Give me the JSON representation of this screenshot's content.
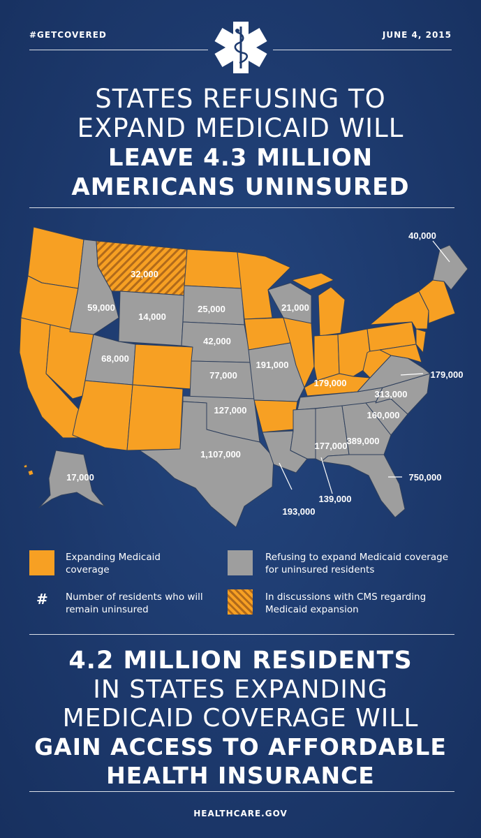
{
  "header": {
    "hashtag": "#GETCOVERED",
    "date": "JUNE 4, 2015",
    "logo_icon": "star-of-life-icon"
  },
  "headline": {
    "line1": "STATES REFUSING TO",
    "line2": "EXPAND MEDICAID WILL",
    "line3": "LEAVE 4.3 MILLION",
    "line4": "AMERICANS UNINSURED"
  },
  "colors": {
    "expanding": "#f7a023",
    "refusing": "#9e9e9e",
    "background": "#1d3a6e",
    "text": "#ffffff"
  },
  "map": {
    "labels": {
      "maine": "40,000",
      "montana": "32,000",
      "idaho": "59,000",
      "wyoming": "14,000",
      "south_dakota": "25,000",
      "wisconsin": "21,000",
      "nebraska": "42,000",
      "utah": "68,000",
      "kansas": "77,000",
      "missouri": "191,000",
      "virginia": "179,000",
      "tennessee": "179,000",
      "north_carolina": "313,000",
      "oklahoma": "127,000",
      "south_carolina": "160,000",
      "georgia": "389,000",
      "alabama": "177,000",
      "texas": "1,107,000",
      "florida": "750,000",
      "alaska": "17,000",
      "mississippi": "139,000",
      "louisiana": "193,000"
    }
  },
  "legend": {
    "expanding": "Expanding Medicaid coverage",
    "refusing": "Refusing to expand Medicaid coverage for uninsured residents",
    "number_symbol": "#",
    "number": "Number of residents who will remain uninsured",
    "discussions": "In discussions with CMS regarding Medicaid expansion"
  },
  "bottom": {
    "line1": "4.2 MILLION RESIDENTS",
    "line2": "IN STATES EXPANDING",
    "line3": "MEDICAID COVERAGE WILL",
    "line4": "GAIN ACCESS TO AFFORDABLE",
    "line5": "HEALTH INSURANCE"
  },
  "footer": {
    "site": "HEALTHCARE.GOV"
  }
}
